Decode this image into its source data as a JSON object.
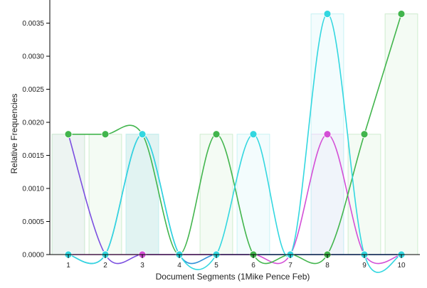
{
  "chart_data": {
    "type": "line",
    "title": "",
    "xlabel": "Document Segments (1Mike Pence Feb)",
    "ylabel": "Relative Frequencies",
    "x": [
      1,
      2,
      3,
      4,
      5,
      6,
      7,
      8,
      9,
      10
    ],
    "xticks": [
      "1",
      "2",
      "3",
      "4",
      "5",
      "6",
      "7",
      "8",
      "9",
      "10"
    ],
    "yticks": [
      "0.0000",
      "0.0005",
      "0.0010",
      "0.0015",
      "0.0020",
      "0.0025",
      "0.0030",
      "0.0035"
    ],
    "ylim": [
      0,
      0.00385
    ],
    "grid": false,
    "legend": "none",
    "series": [
      {
        "color": "#7b4fe0",
        "bar_color": "#d9d9f5",
        "values": [
          0.00182,
          0,
          0,
          0,
          0,
          0,
          0,
          0,
          0,
          0
        ]
      },
      {
        "color": "#2f8fd8",
        "bar_color": "#bcd8f0",
        "values": [
          0,
          0,
          0.00182,
          0,
          0,
          0,
          0,
          0,
          0,
          0
        ]
      },
      {
        "color": "#d34fd6",
        "bar_color": "#f0d3f2",
        "values": [
          0,
          0,
          0,
          0,
          0,
          0,
          0,
          0.00182,
          0,
          0
        ]
      },
      {
        "color": "#42b54d",
        "bar_color": "#cfeccf",
        "values": [
          0.00182,
          0.00182,
          0.00182,
          0,
          0.00182,
          0,
          0,
          0,
          0.00182,
          0.00364
        ]
      },
      {
        "color": "#33d7e0",
        "bar_color": "#c8f2f4",
        "values": [
          0,
          0,
          0.00182,
          0,
          0,
          0.00182,
          0,
          0.00364,
          0,
          0
        ]
      }
    ]
  }
}
